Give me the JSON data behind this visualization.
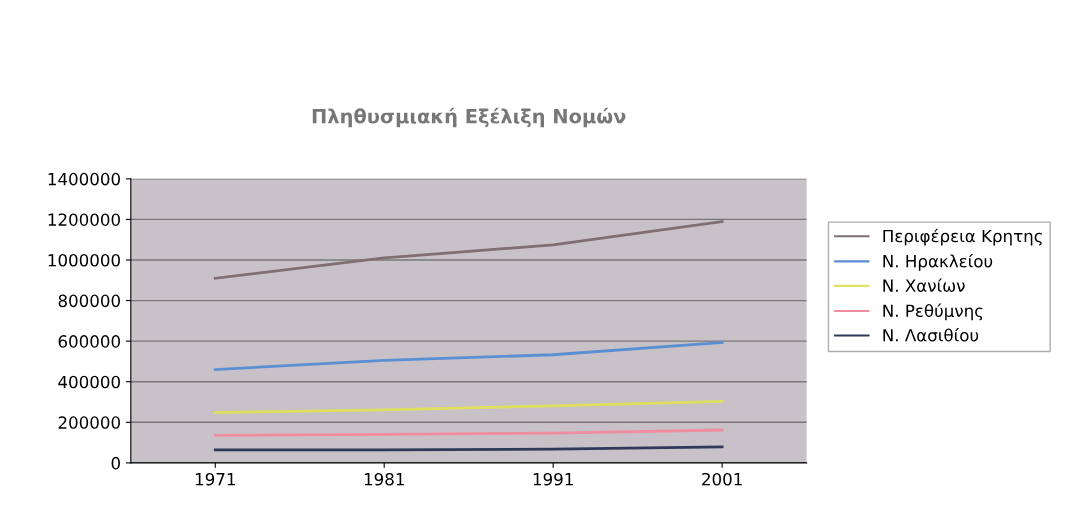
{
  "chart_data": {
    "type": "line",
    "title": "Πληθυσμιακή Εξέλιξη Νομών",
    "categories": [
      "1971",
      "1981",
      "1991",
      "2001"
    ],
    "series": [
      {
        "name": "Περιφέρεια Κρητης",
        "color": "#7f6f72",
        "values": [
          910000,
          1010000,
          1075000,
          1190000
        ]
      },
      {
        "name": "Ν. Ηρακλείου",
        "color": "#5b8fd4",
        "values": [
          460000,
          505000,
          533000,
          594000
        ]
      },
      {
        "name": "Ν. Χανίων",
        "color": "#e0e060",
        "values": [
          248000,
          261000,
          281000,
          303000
        ]
      },
      {
        "name": "Ν. Ρεθύμνης",
        "color": "#f08ca0",
        "values": [
          136000,
          140000,
          147000,
          162000
        ]
      },
      {
        "name": "Ν. Λασιθίου",
        "color": "#2f3a5a",
        "values": [
          64000,
          64000,
          68000,
          79000
        ]
      }
    ],
    "ylim": [
      0,
      1400000
    ],
    "yticks": [
      0,
      200000,
      400000,
      600000,
      800000,
      1000000,
      1200000,
      1400000
    ],
    "grid": "y",
    "legend": "right",
    "marker": "none",
    "line_style": "solid"
  }
}
